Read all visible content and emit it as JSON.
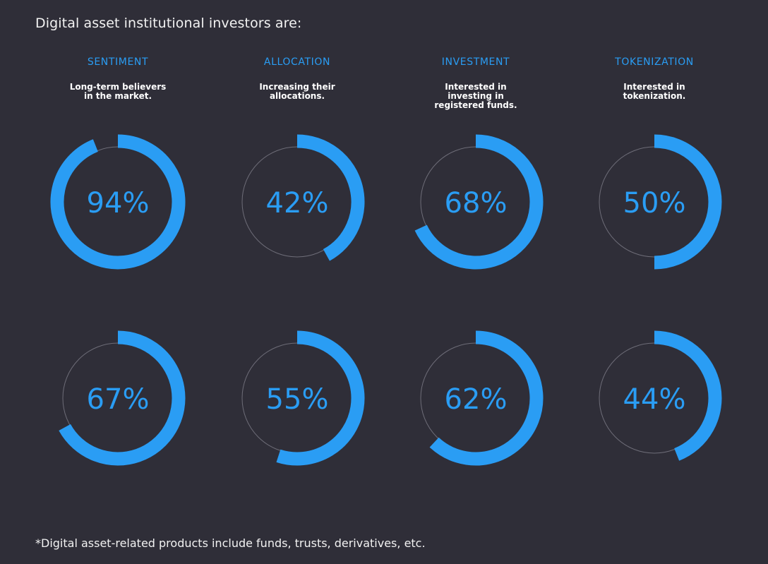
{
  "heading": "Digital asset institutional investors are:",
  "columns": [
    {
      "title": "SENTIMENT",
      "description": "Long-term believers in the market."
    },
    {
      "title": "ALLOCATION",
      "description": "Increasing their allocations."
    },
    {
      "title": "INVESTMENT",
      "description": "Interested in investing in registered funds."
    },
    {
      "title": "TOKENIZATION",
      "description": "Interested in tokenization."
    }
  ],
  "footnote": "*Digital asset-related products include funds, trusts, derivatives, etc.",
  "colors": {
    "background": "#2f2e38",
    "accent": "#2a9df4",
    "track": "#6e6d78"
  },
  "chart_data": {
    "type": "donut",
    "categories": [
      "SENTIMENT",
      "ALLOCATION",
      "INVESTMENT",
      "TOKENIZATION"
    ],
    "series": [
      {
        "values": [
          94,
          42,
          68,
          50
        ],
        "labels": [
          "94%",
          "42%",
          "68%",
          "50%"
        ]
      },
      {
        "values": [
          67,
          55,
          62,
          44
        ],
        "labels": [
          "67%",
          "55%",
          "62%",
          "44%"
        ]
      }
    ],
    "unit": "%"
  }
}
